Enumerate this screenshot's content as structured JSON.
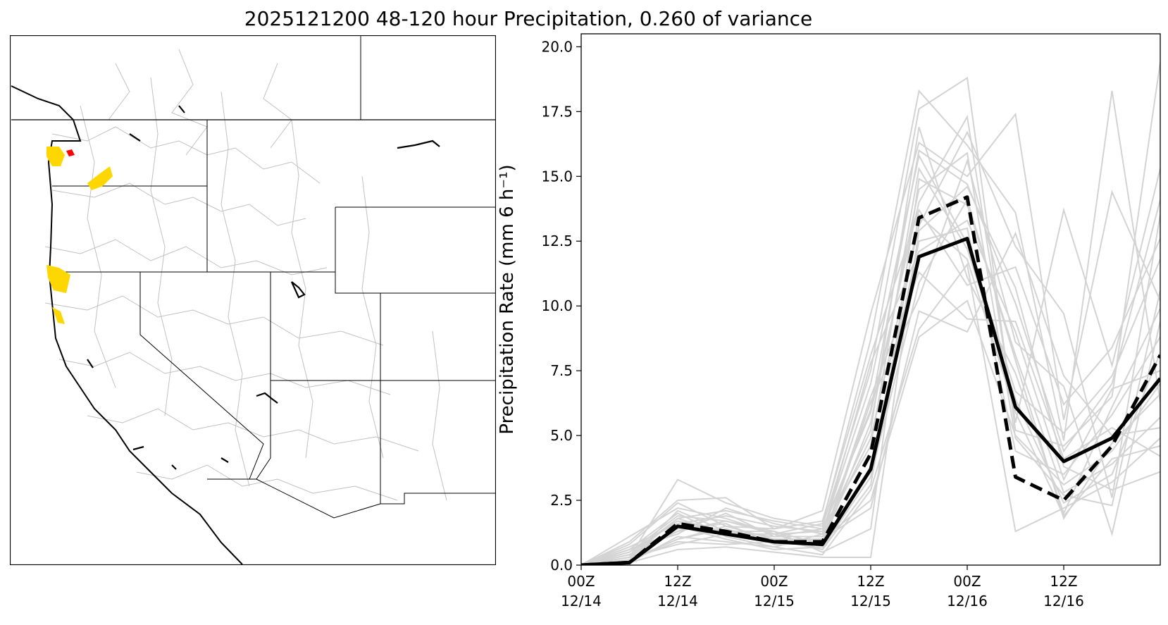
{
  "title": "2025121200 48-120 hour Precipitation, 0.260 of variance",
  "colors": {
    "member_line": "#d3d3d3",
    "mean_line": "#000000",
    "highlight_yellow": "#ffd700",
    "highlight_red": "#ff0000",
    "map_border": "#000000",
    "basin_line": "#c0c0c0"
  },
  "map": {
    "description_icon": "map-icon"
  },
  "chart_data": {
    "type": "line",
    "title": "",
    "xlabel": "",
    "ylabel": "Precipitation Rate (mm 6 h⁻¹)",
    "ylim": [
      0,
      20.5
    ],
    "yticks": [
      0.0,
      2.5,
      5.0,
      7.5,
      10.0,
      12.5,
      15.0,
      17.5,
      20.0
    ],
    "ytick_labels": [
      "0.0",
      "2.5",
      "5.0",
      "7.5",
      "10.0",
      "12.5",
      "15.0",
      "17.5",
      "20.0"
    ],
    "xticks": [
      {
        "line1": "00Z",
        "line2": "12/14"
      },
      {
        "line1": "12Z",
        "line2": "12/14"
      },
      {
        "line1": "00Z",
        "line2": "12/15"
      },
      {
        "line1": "12Z",
        "line2": "12/15"
      },
      {
        "line1": "00Z",
        "line2": "12/16"
      },
      {
        "line1": "12Z",
        "line2": "12/16"
      }
    ],
    "x_hours": [
      0,
      6,
      12,
      18,
      24,
      30,
      36,
      42,
      48,
      54,
      60,
      66,
      72
    ],
    "xlim": [
      0,
      72
    ],
    "grid": false,
    "series": [
      {
        "style": "mean-solid",
        "values": [
          0.0,
          0.1,
          1.5,
          1.2,
          0.9,
          0.8,
          3.7,
          11.9,
          12.6,
          6.1,
          4.0,
          4.9,
          7.2
        ]
      },
      {
        "style": "mean-dashed",
        "values": [
          0.0,
          0.1,
          1.6,
          1.3,
          0.9,
          0.9,
          4.3,
          13.4,
          14.2,
          3.4,
          2.5,
          4.6,
          8.1
        ]
      }
    ],
    "members": [
      [
        0.0,
        0.3,
        3.3,
        2.4,
        1.8,
        1.5,
        7.5,
        17.6,
        18.8,
        5.2,
        4.6,
        6.5,
        19.4
      ],
      [
        0.0,
        0.9,
        2.5,
        2.6,
        1.4,
        2.1,
        9.7,
        16.3,
        15.0,
        17.4,
        5.6,
        14.4,
        10.2
      ],
      [
        0.0,
        1.1,
        2.2,
        1.8,
        1.2,
        1.6,
        8.7,
        18.3,
        16.2,
        13.6,
        4.8,
        18.3,
        6.3
      ],
      [
        0.0,
        0.4,
        1.8,
        2.1,
        1.7,
        1.4,
        5.9,
        14.0,
        17.3,
        5.5,
        13.7,
        7.7,
        15.3
      ],
      [
        0.0,
        0.6,
        1.3,
        2.0,
        1.1,
        1.1,
        4.9,
        13.1,
        16.7,
        12.3,
        9.7,
        2.6,
        13.5
      ],
      [
        0.0,
        0.2,
        1.0,
        1.4,
        0.9,
        0.8,
        6.3,
        10.3,
        15.6,
        8.6,
        6.9,
        1.2,
        9.4
      ],
      [
        0.0,
        0.5,
        1.9,
        1.7,
        1.2,
        0.6,
        3.8,
        12.5,
        13.0,
        4.4,
        3.5,
        5.8,
        8.8
      ],
      [
        0.0,
        0.1,
        1.1,
        0.9,
        0.7,
        0.4,
        2.9,
        9.1,
        11.6,
        1.3,
        2.2,
        3.2,
        4.9
      ],
      [
        0.0,
        0.7,
        1.6,
        1.9,
        1.5,
        1.3,
        7.0,
        15.8,
        12.4,
        6.7,
        5.1,
        7.3,
        11.8
      ],
      [
        0.0,
        0.3,
        0.8,
        1.2,
        1.0,
        1.0,
        2.5,
        8.8,
        10.2,
        5.0,
        3.1,
        4.4,
        7.0
      ],
      [
        0.0,
        0.2,
        2.1,
        1.3,
        1.3,
        0.5,
        1.4,
        14.9,
        13.9,
        8.1,
        2.8,
        3.9,
        5.7
      ],
      [
        0.0,
        0.4,
        1.4,
        1.6,
        0.8,
        0.9,
        6.5,
        11.3,
        9.5,
        9.4,
        4.1,
        5.3,
        4.2
      ],
      [
        0.0,
        0.6,
        1.2,
        2.2,
        1.6,
        1.2,
        5.2,
        16.9,
        11.1,
        7.4,
        2.0,
        6.1,
        9.9
      ],
      [
        0.0,
        0.1,
        0.6,
        0.7,
        0.5,
        0.3,
        0.3,
        12.9,
        14.6,
        10.7,
        3.8,
        2.9,
        3.6
      ],
      [
        0.0,
        0.8,
        2.4,
        1.5,
        1.4,
        1.7,
        8.1,
        13.7,
        10.8,
        11.5,
        6.2,
        8.4,
        12.6
      ],
      [
        0.0,
        0.3,
        1.5,
        1.0,
        0.6,
        0.7,
        3.4,
        10.9,
        14.1,
        7.9,
        1.8,
        4.7,
        6.6
      ],
      [
        0.0,
        0.5,
        1.7,
        1.3,
        1.1,
        1.4,
        4.6,
        15.3,
        12.2,
        6.4,
        2.4,
        3.5,
        8.2
      ],
      [
        0.0,
        0.2,
        0.9,
        0.8,
        0.9,
        1.0,
        2.2,
        9.8,
        9.0,
        12.8,
        7.3,
        5.0,
        5.3
      ],
      [
        0.0,
        0.4,
        1.3,
        1.7,
        1.3,
        0.8,
        5.5,
        14.5,
        15.9,
        4.9,
        2.7,
        2.3,
        10.6
      ],
      [
        0.0,
        0.6,
        2.0,
        1.1,
        0.7,
        1.2,
        7.8,
        12.1,
        13.3,
        9.0,
        3.3,
        6.8,
        7.5
      ],
      [
        0.0,
        0.2,
        1.0,
        1.5,
        1.0,
        0.6,
        3.1,
        13.5,
        11.8,
        5.9,
        1.9,
        4.1,
        4.6
      ],
      [
        0.0,
        0.3,
        1.8,
        1.2,
        1.2,
        1.3,
        6.0,
        16.0,
        14.7,
        10.1,
        4.4,
        7.0,
        14.1
      ]
    ]
  }
}
